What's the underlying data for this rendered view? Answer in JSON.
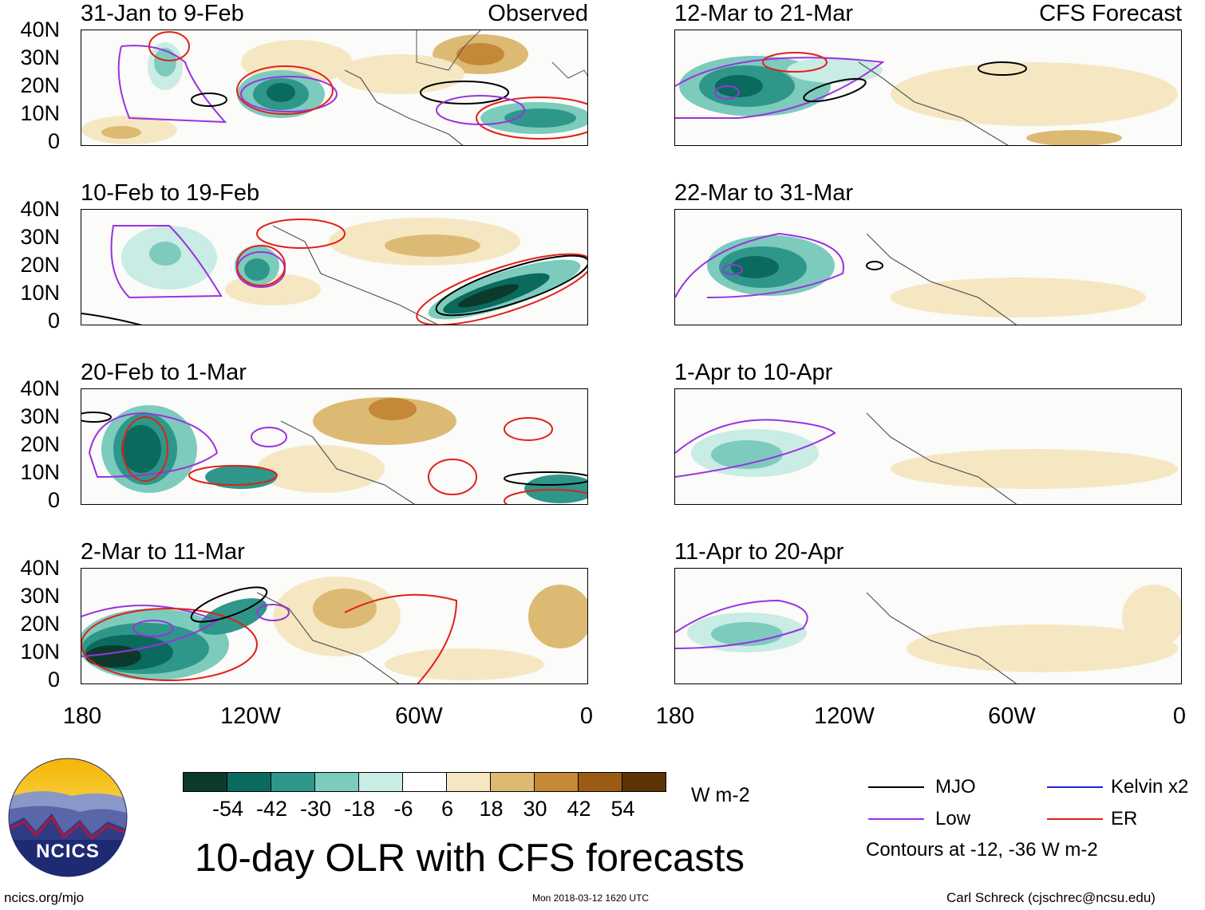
{
  "panels": [
    {
      "title": "31-Jan to 9-Feb",
      "label": "Observed"
    },
    {
      "title": "10-Feb to 19-Feb",
      "label": ""
    },
    {
      "title": "20-Feb to 1-Mar",
      "label": ""
    },
    {
      "title": "2-Mar to 11-Mar",
      "label": ""
    },
    {
      "title": "12-Mar to 21-Mar",
      "label": "CFS Forecast"
    },
    {
      "title": "22-Mar to 31-Mar",
      "label": ""
    },
    {
      "title": "1-Apr to 10-Apr",
      "label": ""
    },
    {
      "title": "11-Apr to 20-Apr",
      "label": ""
    }
  ],
  "y_ticks": [
    "40N",
    "30N",
    "20N",
    "10N",
    "0"
  ],
  "x_ticks": [
    "180",
    "120W",
    "60W",
    "0"
  ],
  "colorbar": {
    "colors": [
      "#0b3a2c",
      "#0b6a5e",
      "#2f968a",
      "#7ccbbd",
      "#c9ece4",
      "#ffffff",
      "#f5e7c2",
      "#ddba73",
      "#c48836",
      "#9c5b14",
      "#5b3505"
    ],
    "ticks": [
      "-54",
      "-42",
      "-30",
      "-18",
      "-6",
      "6",
      "18",
      "30",
      "42",
      "54"
    ],
    "units": "W m-2"
  },
  "legend": {
    "items": [
      {
        "name": "MJO",
        "color": "#000000"
      },
      {
        "name": "Kelvin x2",
        "color": "#1f22d6"
      },
      {
        "name": "Low",
        "color": "#9a32e0"
      },
      {
        "name": "ER",
        "color": "#e0201a"
      }
    ],
    "contours_note": "Contours at -12, -36 W m-2"
  },
  "title": "10-day OLR with CFS forecasts",
  "logo_text": "NCICS",
  "footer": {
    "left": "ncics.org/mjo",
    "center": "Mon 2018-03-12 1620 UTC",
    "right": "Carl Schreck (cjschrec@ncsu.edu)"
  }
}
